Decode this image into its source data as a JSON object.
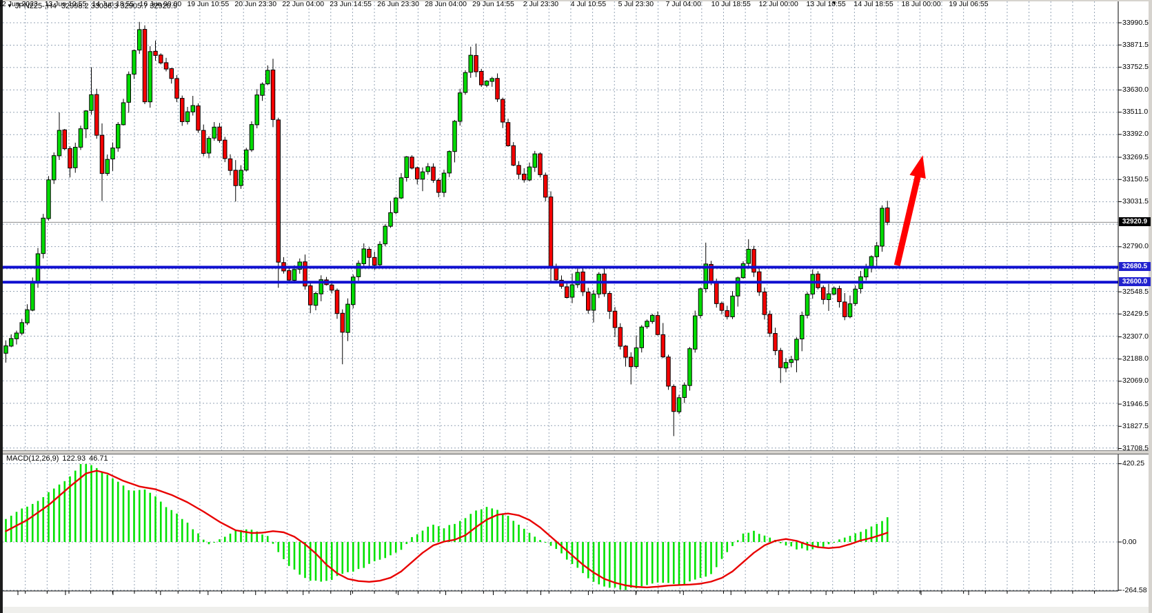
{
  "title_bar": {
    "dropdown_icon": "▼",
    "symbol": "JPN225-,H4",
    "ohlc_text": "32998.2 33036.3 32905.7 32920.9"
  },
  "price_axis": {
    "ticks": [
      {
        "label": "33990.5"
      },
      {
        "label": "33871.5"
      },
      {
        "label": "33752.5"
      },
      {
        "label": "33630.0"
      },
      {
        "label": "33511.0"
      },
      {
        "label": "33392.0"
      },
      {
        "label": "33269.5"
      },
      {
        "label": "33150.5"
      },
      {
        "label": "33031.5"
      },
      {
        "label": "32790.0"
      },
      {
        "label": "32548.5"
      },
      {
        "label": "32429.5"
      },
      {
        "label": "32307.0"
      },
      {
        "label": "32188.0"
      },
      {
        "label": "32069.0"
      },
      {
        "label": "31946.5"
      },
      {
        "label": "31827.5"
      },
      {
        "label": "31708.5"
      }
    ],
    "current_badge": "32920.9",
    "line_badges": [
      "32680.5",
      "32600.0"
    ]
  },
  "macd_panel": {
    "indicator_label": "MACD(12,26,9)",
    "value_main": "122.93",
    "value_signal": "46.71",
    "axis_ticks": [
      "420.25",
      "0.00",
      "-264.58"
    ]
  },
  "time_axis": {
    "labels": [
      "12 Jun 2023",
      "13 Jun 10:55",
      "14 Jun 18:55",
      "16 Jun 00:00",
      "19 Jun 10:55",
      "20 Jun 23:30",
      "22 Jun 04:00",
      "23 Jun 14:55",
      "26 Jun 23:30",
      "28 Jun 04:00",
      "29 Jun 14:55",
      "2 Jul 23:30",
      "4 Jul 10:55",
      "5 Jul 23:30",
      "7 Jul 04:00",
      "10 Jul 18:55",
      "12 Jul 00:00",
      "13 Jul 10:55",
      "14 Jul 18:55",
      "18 Jul 00:00",
      "19 Jul 06:55"
    ]
  },
  "icons": {
    "dropdown": "▼",
    "shift_marker": "▼"
  },
  "colors": {
    "background": "#FFFFFF",
    "grid": "#94A3B5",
    "bull": "#00DB00",
    "bear": "#F40000",
    "outline": "#000000",
    "hline": "#0F0FD0",
    "current_price_line": "#8C8C8C",
    "macd_histogram": "#00E200",
    "macd_signal": "#E80000",
    "arrow": "#FF0000",
    "badge_current_bg": "#000000",
    "badge_current_fg": "#FFFFFF",
    "badge_line_bg": "#2222CE",
    "badge_line_fg": "#FFFFFF",
    "panel_border": "#000000"
  },
  "chart_data": {
    "type": "candlestick",
    "symbol": "JPN225-",
    "timeframe": "H4",
    "title": "JPN225-,H4 32998.2 33036.3 32905.7 32920.9",
    "last_bar": {
      "open": 32998.2,
      "high": 33036.3,
      "low": 32905.7,
      "close": 32920.9
    },
    "current_price": 32920.9,
    "price_axis_range": [
      31708.5,
      33990.5
    ],
    "horizontal_lines": [
      {
        "price": 32680.5
      },
      {
        "price": 32600.0
      }
    ],
    "bars_count": 166,
    "close_waypoints": [
      [
        0,
        32260
      ],
      [
        2,
        32330
      ],
      [
        4,
        32450
      ],
      [
        6,
        32750
      ],
      [
        8,
        33150
      ],
      [
        10,
        33420
      ],
      [
        12,
        33210
      ],
      [
        14,
        33420
      ],
      [
        16,
        33600
      ],
      [
        18,
        33180
      ],
      [
        20,
        33320
      ],
      [
        22,
        33560
      ],
      [
        24,
        33850
      ],
      [
        25,
        33950
      ],
      [
        26,
        33560
      ],
      [
        27,
        33840
      ],
      [
        29,
        33780
      ],
      [
        31,
        33700
      ],
      [
        33,
        33460
      ],
      [
        35,
        33550
      ],
      [
        37,
        33290
      ],
      [
        39,
        33440
      ],
      [
        41,
        33270
      ],
      [
        43,
        33110
      ],
      [
        45,
        33300
      ],
      [
        47,
        33600
      ],
      [
        49,
        33730
      ],
      [
        50,
        33480
      ],
      [
        51,
        32700
      ],
      [
        53,
        32620
      ],
      [
        55,
        32700
      ],
      [
        57,
        32470
      ],
      [
        59,
        32620
      ],
      [
        61,
        32550
      ],
      [
        63,
        32330
      ],
      [
        65,
        32620
      ],
      [
        67,
        32780
      ],
      [
        69,
        32700
      ],
      [
        71,
        32900
      ],
      [
        73,
        33060
      ],
      [
        75,
        33270
      ],
      [
        77,
        33150
      ],
      [
        79,
        33220
      ],
      [
        81,
        33080
      ],
      [
        83,
        33300
      ],
      [
        85,
        33620
      ],
      [
        87,
        33820
      ],
      [
        89,
        33650
      ],
      [
        91,
        33700
      ],
      [
        93,
        33450
      ],
      [
        95,
        33220
      ],
      [
        97,
        33150
      ],
      [
        99,
        33280
      ],
      [
        101,
        33060
      ],
      [
        102,
        32680
      ],
      [
        103,
        32620
      ],
      [
        105,
        32520
      ],
      [
        107,
        32660
      ],
      [
        109,
        32450
      ],
      [
        111,
        32640
      ],
      [
        113,
        32450
      ],
      [
        115,
        32260
      ],
      [
        117,
        32140
      ],
      [
        119,
        32360
      ],
      [
        121,
        32430
      ],
      [
        123,
        32200
      ],
      [
        125,
        31900
      ],
      [
        127,
        32050
      ],
      [
        129,
        32420
      ],
      [
        131,
        32700
      ],
      [
        133,
        32480
      ],
      [
        135,
        32420
      ],
      [
        137,
        32620
      ],
      [
        139,
        32770
      ],
      [
        141,
        32540
      ],
      [
        143,
        32320
      ],
      [
        145,
        32150
      ],
      [
        147,
        32180
      ],
      [
        149,
        32420
      ],
      [
        151,
        32650
      ],
      [
        153,
        32500
      ],
      [
        155,
        32560
      ],
      [
        157,
        32420
      ],
      [
        159,
        32560
      ],
      [
        161,
        32680
      ],
      [
        163,
        32800
      ],
      [
        164,
        32990
      ],
      [
        165,
        32920.9
      ]
    ],
    "high_overrides": {
      "10": 33510,
      "16": 33752,
      "25": 33995,
      "49": 33762,
      "87": 33862,
      "131": 32812,
      "139": 32830,
      "164": 33012
    },
    "low_overrides": {
      "18": 33035,
      "43": 33032,
      "51": 32570,
      "63": 32160,
      "102": 32600,
      "117": 32052,
      "125": 31775,
      "145": 32060
    },
    "macd": {
      "params": "12,26,9",
      "axis_range": [
        -264.58,
        420.25
      ],
      "histogram_waypoints": [
        [
          0,
          125
        ],
        [
          3,
          175
        ],
        [
          6,
          220
        ],
        [
          9,
          285
        ],
        [
          12,
          355
        ],
        [
          14,
          418
        ],
        [
          16,
          412
        ],
        [
          18,
          375
        ],
        [
          21,
          325
        ],
        [
          23,
          282
        ],
        [
          26,
          278
        ],
        [
          28,
          242
        ],
        [
          30,
          188
        ],
        [
          32,
          148
        ],
        [
          34,
          100
        ],
        [
          36,
          42
        ],
        [
          37,
          8
        ],
        [
          38,
          -12
        ],
        [
          39,
          -6
        ],
        [
          41,
          28
        ],
        [
          43,
          62
        ],
        [
          45,
          72
        ],
        [
          47,
          58
        ],
        [
          49,
          30
        ],
        [
          51,
          -50
        ],
        [
          53,
          -125
        ],
        [
          55,
          -172
        ],
        [
          57,
          -205
        ],
        [
          59,
          -216
        ],
        [
          61,
          -202
        ],
        [
          63,
          -172
        ],
        [
          66,
          -148
        ],
        [
          69,
          -108
        ],
        [
          72,
          -68
        ],
        [
          74,
          -38
        ],
        [
          76,
          22
        ],
        [
          78,
          62
        ],
        [
          80,
          95
        ],
        [
          82,
          78
        ],
        [
          84,
          96
        ],
        [
          86,
          132
        ],
        [
          88,
          165
        ],
        [
          90,
          185
        ],
        [
          92,
          172
        ],
        [
          94,
          138
        ],
        [
          96,
          92
        ],
        [
          98,
          48
        ],
        [
          100,
          12
        ],
        [
          101,
          -2
        ],
        [
          103,
          -38
        ],
        [
          105,
          -92
        ],
        [
          107,
          -142
        ],
        [
          109,
          -192
        ],
        [
          111,
          -226
        ],
        [
          113,
          -246
        ],
        [
          116,
          -256
        ],
        [
          118,
          -246
        ],
        [
          120,
          -234
        ],
        [
          122,
          -214
        ],
        [
          124,
          -224
        ],
        [
          126,
          -234
        ],
        [
          128,
          -214
        ],
        [
          130,
          -192
        ],
        [
          132,
          -172
        ],
        [
          134,
          -92
        ],
        [
          136,
          -18
        ],
        [
          138,
          46
        ],
        [
          140,
          56
        ],
        [
          142,
          34
        ],
        [
          144,
          8
        ],
        [
          146,
          -18
        ],
        [
          148,
          -36
        ],
        [
          150,
          -42
        ],
        [
          152,
          -30
        ],
        [
          154,
          -14
        ],
        [
          156,
          12
        ],
        [
          158,
          32
        ],
        [
          160,
          58
        ],
        [
          162,
          85
        ],
        [
          164,
          115
        ],
        [
          165,
          135
        ]
      ],
      "signal_waypoints": [
        [
          0,
          58
        ],
        [
          4,
          118
        ],
        [
          8,
          198
        ],
        [
          12,
          298
        ],
        [
          15,
          368
        ],
        [
          17,
          383
        ],
        [
          19,
          368
        ],
        [
          22,
          328
        ],
        [
          25,
          298
        ],
        [
          28,
          283
        ],
        [
          31,
          253
        ],
        [
          34,
          213
        ],
        [
          37,
          163
        ],
        [
          40,
          108
        ],
        [
          43,
          63
        ],
        [
          46,
          48
        ],
        [
          48,
          50
        ],
        [
          50,
          58
        ],
        [
          52,
          52
        ],
        [
          54,
          28
        ],
        [
          56,
          -12
        ],
        [
          58,
          -62
        ],
        [
          60,
          -122
        ],
        [
          62,
          -168
        ],
        [
          64,
          -198
        ],
        [
          66,
          -210
        ],
        [
          68,
          -214
        ],
        [
          70,
          -208
        ],
        [
          72,
          -192
        ],
        [
          74,
          -158
        ],
        [
          76,
          -108
        ],
        [
          78,
          -58
        ],
        [
          80,
          -18
        ],
        [
          82,
          2
        ],
        [
          84,
          12
        ],
        [
          86,
          36
        ],
        [
          88,
          80
        ],
        [
          90,
          120
        ],
        [
          92,
          146
        ],
        [
          94,
          153
        ],
        [
          96,
          143
        ],
        [
          98,
          118
        ],
        [
          100,
          78
        ],
        [
          102,
          28
        ],
        [
          104,
          -22
        ],
        [
          106,
          -72
        ],
        [
          108,
          -122
        ],
        [
          110,
          -164
        ],
        [
          112,
          -198
        ],
        [
          114,
          -219
        ],
        [
          116,
          -233
        ],
        [
          118,
          -241
        ],
        [
          120,
          -244
        ],
        [
          122,
          -240
        ],
        [
          124,
          -234
        ],
        [
          126,
          -231
        ],
        [
          128,
          -229
        ],
        [
          130,
          -224
        ],
        [
          132,
          -213
        ],
        [
          134,
          -193
        ],
        [
          136,
          -158
        ],
        [
          138,
          -108
        ],
        [
          140,
          -58
        ],
        [
          142,
          -18
        ],
        [
          144,
          6
        ],
        [
          146,
          16
        ],
        [
          148,
          6
        ],
        [
          150,
          -14
        ],
        [
          152,
          -28
        ],
        [
          154,
          -33
        ],
        [
          156,
          -28
        ],
        [
          158,
          -12
        ],
        [
          160,
          8
        ],
        [
          162,
          22
        ],
        [
          164,
          40
        ],
        [
          165,
          50
        ]
      ]
    },
    "annotation_arrow": {
      "bar_from": 166.8,
      "price_from": 32690,
      "bar_to": 171.6,
      "price_to": 33280
    }
  }
}
